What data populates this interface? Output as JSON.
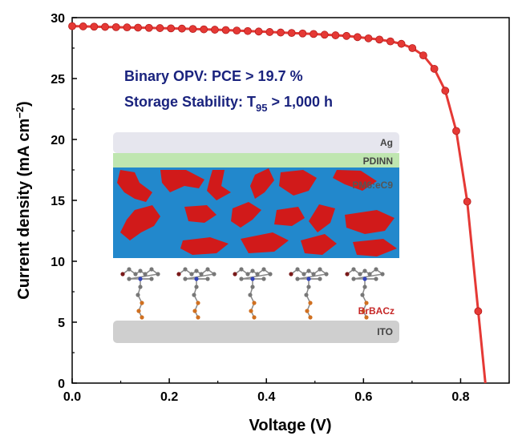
{
  "chart_data": {
    "type": "line",
    "title": "",
    "xlabel": "Voltage (V)",
    "ylabel_main": "Current density (mA cm",
    "ylabel_sup": "−2",
    "ylabel_close": ")",
    "xlim": [
      0.0,
      0.9
    ],
    "ylim": [
      0,
      30
    ],
    "xticks": [
      "0.0",
      "0.2",
      "0.4",
      "0.6",
      "0.8"
    ],
    "yticks": [
      "0",
      "5",
      "10",
      "15",
      "20",
      "25",
      "30"
    ],
    "grid": false,
    "series": [
      {
        "color": "#e53935",
        "x": [
          0.0,
          0.0226,
          0.0452,
          0.0678,
          0.0904,
          0.113,
          0.1356,
          0.1582,
          0.1808,
          0.2034,
          0.226,
          0.2486,
          0.2712,
          0.2938,
          0.3164,
          0.339,
          0.3616,
          0.3842,
          0.4068,
          0.4294,
          0.452,
          0.4746,
          0.4972,
          0.5198,
          0.5424,
          0.565,
          0.5876,
          0.6102,
          0.6328,
          0.6554,
          0.678,
          0.7006,
          0.7232,
          0.7458,
          0.7684,
          0.791,
          0.8136,
          0.8362,
          0.851
        ],
        "y": [
          29.3,
          29.28,
          29.26,
          29.24,
          29.22,
          29.2,
          29.18,
          29.16,
          29.14,
          29.12,
          29.1,
          29.07,
          29.04,
          29.01,
          28.98,
          28.94,
          28.9,
          28.86,
          28.82,
          28.78,
          28.74,
          28.7,
          28.66,
          28.6,
          28.55,
          28.5,
          28.4,
          28.3,
          28.2,
          28.05,
          27.85,
          27.5,
          26.9,
          25.8,
          24.0,
          20.7,
          14.9,
          5.9,
          0
        ]
      }
    ]
  },
  "annotation": {
    "line1": "Binary OPV: PCE > 19.7 %",
    "line2_prefix": "Storage Stability: T",
    "line2_sub": "95",
    "line2_suffix": " > 1,000 h",
    "color": "#1a237e"
  },
  "inset": {
    "layers": [
      "Ag",
      "PDINN",
      "PM6:eC9",
      "BrBACz",
      "ITO"
    ],
    "colors": {
      "ag": "#e6e6ee",
      "pdinn": "#bfe6b0",
      "active": "#2288cc",
      "domains": "#d11a1a",
      "sam": "#ffffff",
      "ito": "#cfcfcf",
      "brbacz_text": "#c62828"
    }
  }
}
